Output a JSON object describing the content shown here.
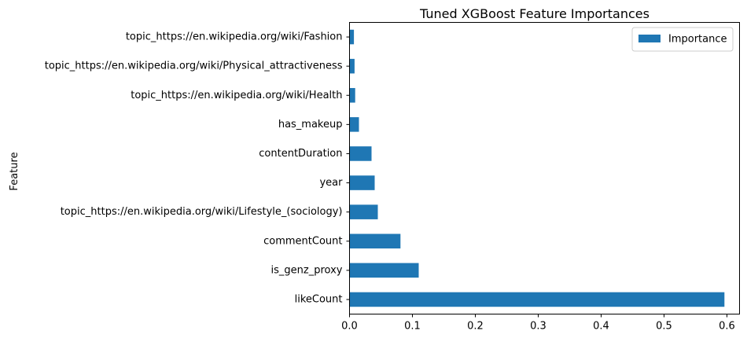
{
  "chart_data": {
    "type": "bar",
    "orientation": "horizontal",
    "title": "Tuned XGBoost Feature Importances",
    "xlabel": "",
    "ylabel": "Feature",
    "categories": [
      "likeCount",
      "is_genz_proxy",
      "commentCount",
      "topic_https://en.wikipedia.org/wiki/Lifestyle_(sociology)",
      "year",
      "contentDuration",
      "has_makeup",
      "topic_https://en.wikipedia.org/wiki/Health",
      "topic_https://en.wikipedia.org/wiki/Physical_attractiveness",
      "topic_https://en.wikipedia.org/wiki/Fashion"
    ],
    "series": [
      {
        "name": "Importance",
        "color": "#1f77b4",
        "values": [
          0.596,
          0.11,
          0.081,
          0.045,
          0.04,
          0.035,
          0.015,
          0.009,
          0.008,
          0.007
        ]
      }
    ],
    "xlim": [
      0,
      0.62
    ],
    "xticks": [
      "0.0",
      "0.1",
      "0.2",
      "0.3",
      "0.4",
      "0.5",
      "0.6"
    ],
    "grid": false,
    "legend": "top-right"
  }
}
